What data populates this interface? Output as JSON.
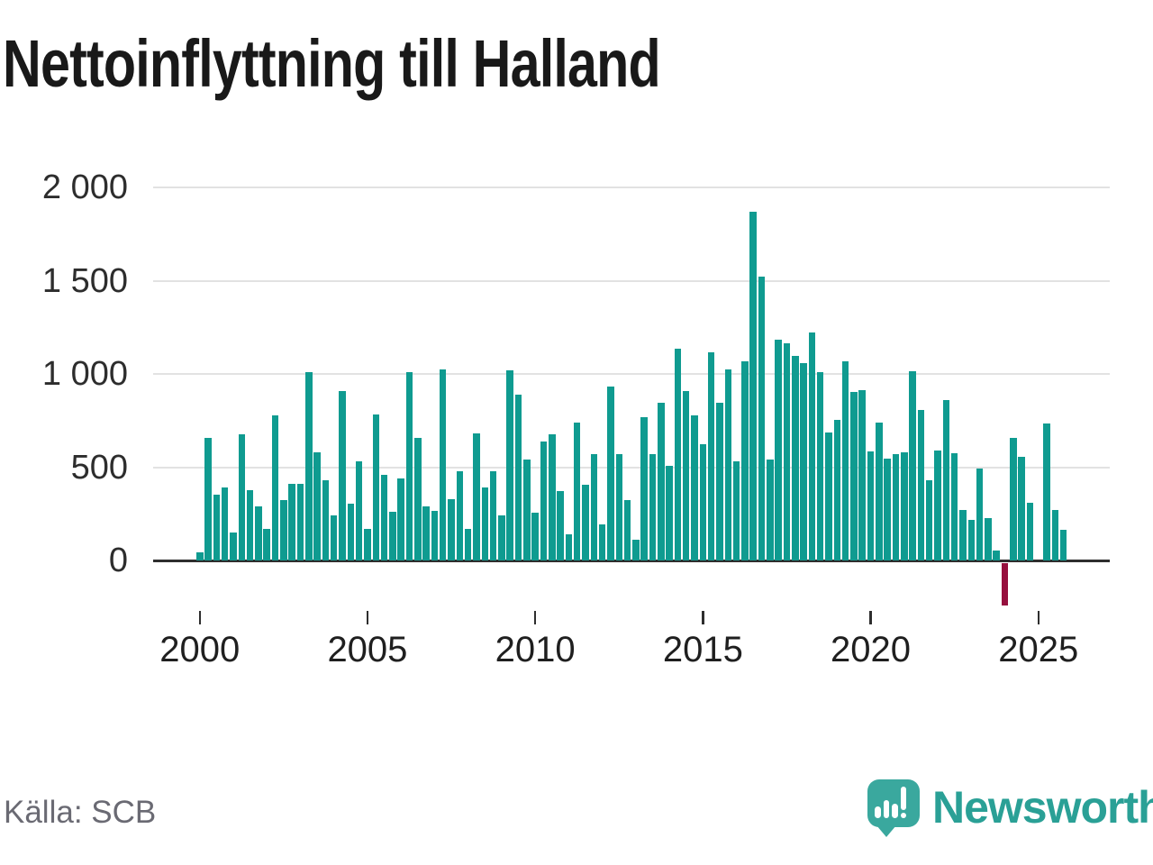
{
  "header": {
    "title": "Nettoinflyttning till Halland"
  },
  "footer": {
    "source": "Källa: SCB",
    "brand_name": "Newsworthy",
    "logo_icon": "speech-bubble-bar-chart-icon"
  },
  "colors": {
    "bar": "#0f9b90",
    "bar_negative": "#96103e",
    "axis": "#2e2e2e",
    "grid": "#e2e2e2",
    "brand_teal": "#2aa096",
    "logo_bubble": "#3aa89e"
  },
  "chart_data": {
    "type": "bar",
    "title": "Nettoinflyttning till Halland",
    "xlabel": "",
    "ylabel": "",
    "grid": true,
    "legend": false,
    "ylim": [
      -300,
      2050
    ],
    "y_ticks": [
      {
        "value": 0,
        "label": "0"
      },
      {
        "value": 500,
        "label": "500"
      },
      {
        "value": 1000,
        "label": "1 000"
      },
      {
        "value": 1500,
        "label": "1 500"
      },
      {
        "value": 2000,
        "label": "2 000"
      }
    ],
    "x_ticks": [
      {
        "index": 0,
        "label": "2000"
      },
      {
        "index": 20,
        "label": "2005"
      },
      {
        "index": 40,
        "label": "2010"
      },
      {
        "index": 60,
        "label": "2015"
      },
      {
        "index": 80,
        "label": "2020"
      },
      {
        "index": 100,
        "label": "2025"
      }
    ],
    "quarters": [
      "2000-Q1",
      "2000-Q2",
      "2000-Q3",
      "2000-Q4",
      "2001-Q1",
      "2001-Q2",
      "2001-Q3",
      "2001-Q4",
      "2002-Q1",
      "2002-Q2",
      "2002-Q3",
      "2002-Q4",
      "2003-Q1",
      "2003-Q2",
      "2003-Q3",
      "2003-Q4",
      "2004-Q1",
      "2004-Q2",
      "2004-Q3",
      "2004-Q4",
      "2005-Q1",
      "2005-Q2",
      "2005-Q3",
      "2005-Q4",
      "2006-Q1",
      "2006-Q2",
      "2006-Q3",
      "2006-Q4",
      "2007-Q1",
      "2007-Q2",
      "2007-Q3",
      "2007-Q4",
      "2008-Q1",
      "2008-Q2",
      "2008-Q3",
      "2008-Q4",
      "2009-Q1",
      "2009-Q2",
      "2009-Q3",
      "2009-Q4",
      "2010-Q1",
      "2010-Q2",
      "2010-Q3",
      "2010-Q4",
      "2011-Q1",
      "2011-Q2",
      "2011-Q3",
      "2011-Q4",
      "2012-Q1",
      "2012-Q2",
      "2012-Q3",
      "2012-Q4",
      "2013-Q1",
      "2013-Q2",
      "2013-Q3",
      "2013-Q4",
      "2014-Q1",
      "2014-Q2",
      "2014-Q3",
      "2014-Q4",
      "2015-Q1",
      "2015-Q2",
      "2015-Q3",
      "2015-Q4",
      "2016-Q1",
      "2016-Q2",
      "2016-Q3",
      "2016-Q4",
      "2017-Q1",
      "2017-Q2",
      "2017-Q3",
      "2017-Q4",
      "2018-Q1",
      "2018-Q2",
      "2018-Q3",
      "2018-Q4",
      "2019-Q1",
      "2019-Q2",
      "2019-Q3",
      "2019-Q4",
      "2020-Q1",
      "2020-Q2",
      "2020-Q3",
      "2020-Q4",
      "2021-Q1",
      "2021-Q2",
      "2021-Q3",
      "2021-Q4",
      "2022-Q1",
      "2022-Q2",
      "2022-Q3",
      "2022-Q4",
      "2023-Q1",
      "2023-Q2",
      "2023-Q3",
      "2023-Q4",
      "2024-Q1",
      "2024-Q2",
      "2024-Q3",
      "2024-Q4",
      "2025-Q1",
      "2025-Q2",
      "2025-Q3",
      "2025-Q4"
    ],
    "values": [
      45,
      655,
      355,
      390,
      150,
      675,
      375,
      290,
      170,
      780,
      325,
      410,
      410,
      1010,
      580,
      430,
      240,
      910,
      305,
      530,
      170,
      785,
      460,
      260,
      440,
      1010,
      655,
      290,
      265,
      1025,
      330,
      480,
      170,
      680,
      390,
      480,
      240,
      1020,
      890,
      540,
      255,
      640,
      675,
      370,
      140,
      740,
      405,
      570,
      195,
      930,
      570,
      325,
      110,
      770,
      570,
      845,
      505,
      1135,
      910,
      780,
      625,
      1115,
      845,
      1025,
      530,
      1070,
      1870,
      1520,
      540,
      1185,
      1165,
      1095,
      1060,
      1220,
      1010,
      685,
      755,
      1070,
      905,
      915,
      585,
      740,
      545,
      570,
      580,
      1015,
      805,
      430,
      590,
      860,
      575,
      270,
      215,
      495,
      225,
      55,
      -230,
      655,
      555,
      310,
      0,
      735,
      270,
      165
    ]
  }
}
